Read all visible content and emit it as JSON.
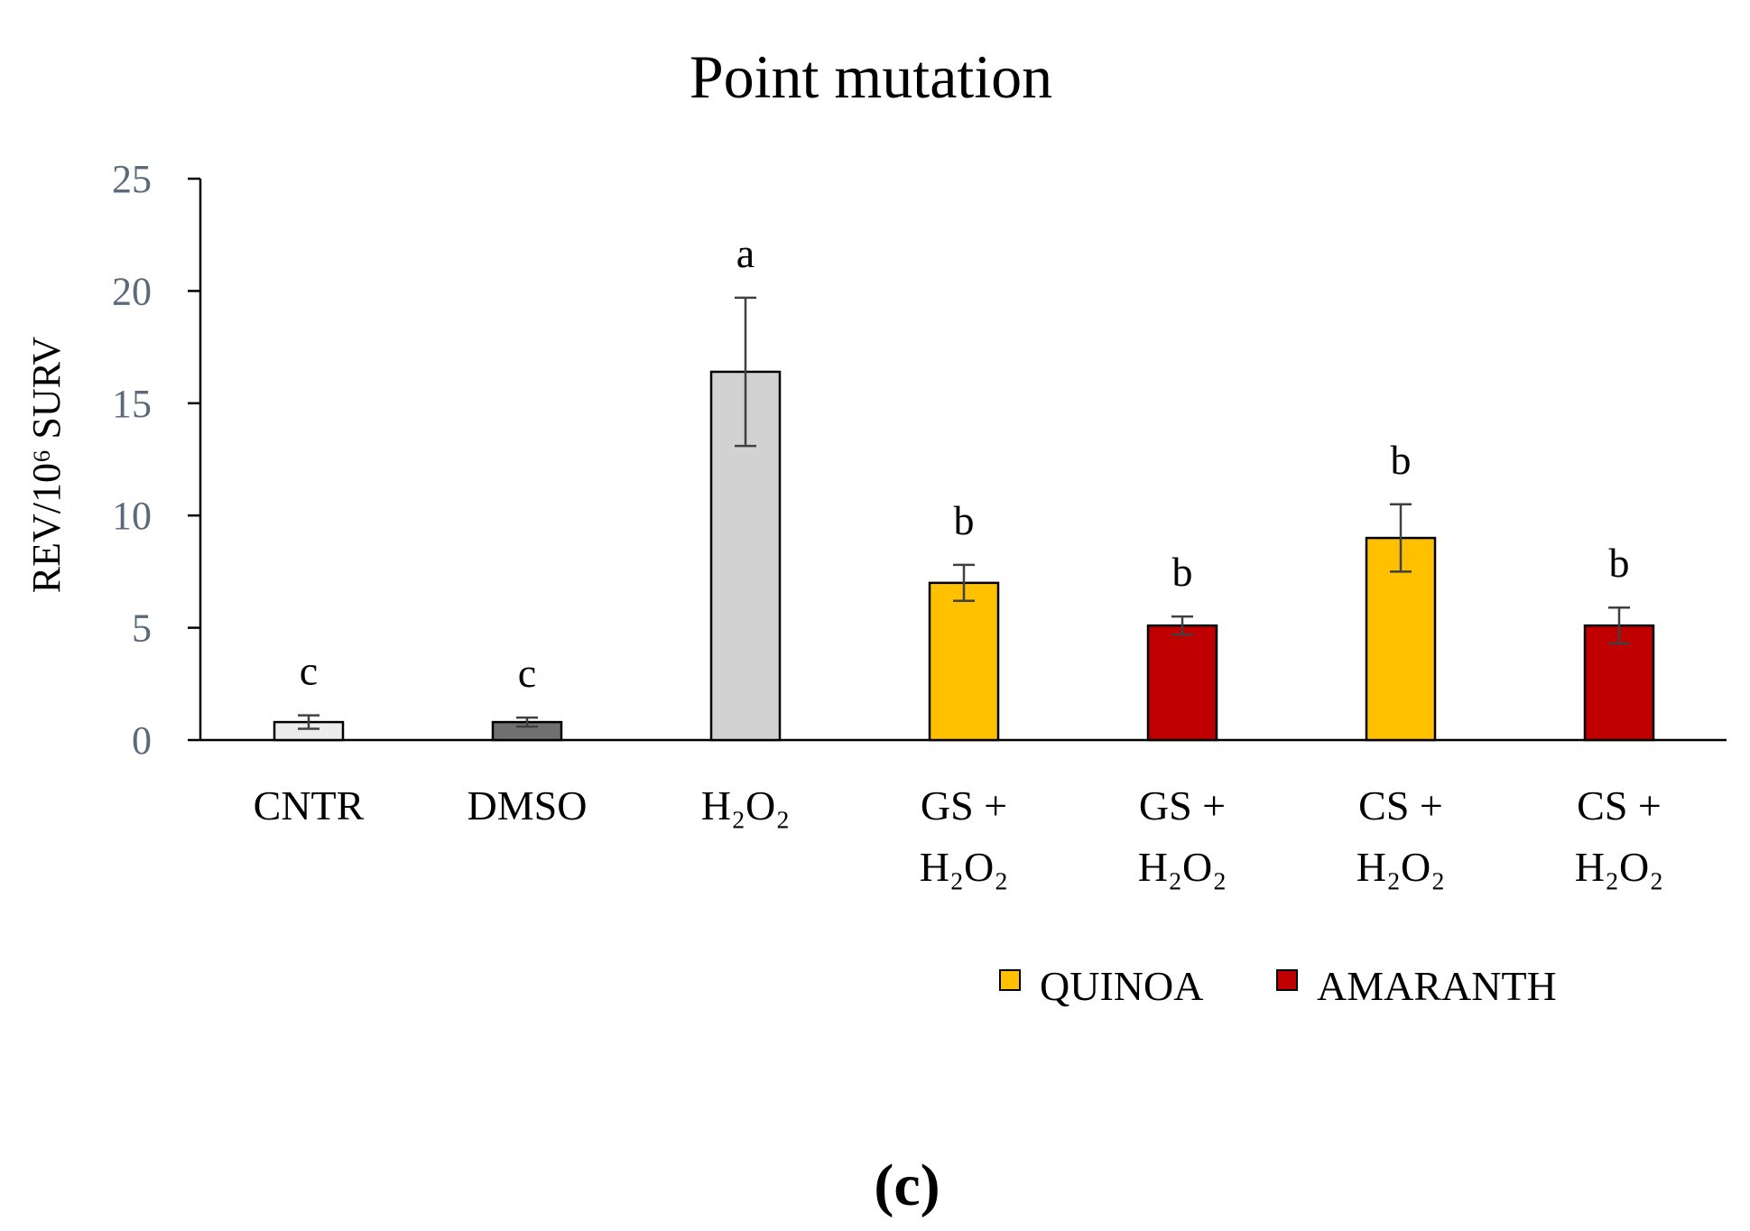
{
  "chart_data": {
    "type": "bar",
    "title": "Point mutation",
    "ylabel": "REV/10⁶ SURV",
    "xlabel": "",
    "ylim": [
      0,
      25
    ],
    "yticks": [
      "0",
      "5",
      "10",
      "15",
      "20",
      "25"
    ],
    "categories": [
      {
        "line1": "CNTR",
        "line2": ""
      },
      {
        "line1": "DMSO",
        "line2": ""
      },
      {
        "line1": "H₂O₂",
        "line2": ""
      },
      {
        "line1": "GS  +",
        "line2": "H₂O₂"
      },
      {
        "line1": "GS +",
        "line2": "H₂O₂"
      },
      {
        "line1": "CS +",
        "line2": "H₂O₂"
      },
      {
        "line1": "CS +",
        "line2": "H₂O₂"
      }
    ],
    "values": [
      0.8,
      0.8,
      16.4,
      7.0,
      5.1,
      9.0,
      5.1
    ],
    "errors": [
      0.3,
      0.2,
      3.3,
      0.8,
      0.4,
      1.5,
      0.8
    ],
    "significance_letters": [
      "c",
      "c",
      "a",
      "b",
      "b",
      "b",
      "b"
    ],
    "bar_colors": [
      "#ececec",
      "#707070",
      "#d2d2d2",
      "#ffc000",
      "#c00000",
      "#ffc000",
      "#c00000"
    ],
    "legend": [
      {
        "label": "QUINOA",
        "color": "#ffc000"
      },
      {
        "label": "AMARANTH",
        "color": "#c00000"
      }
    ],
    "legend_position": "bottom-right",
    "grid": false
  },
  "panel_label": "(c)"
}
